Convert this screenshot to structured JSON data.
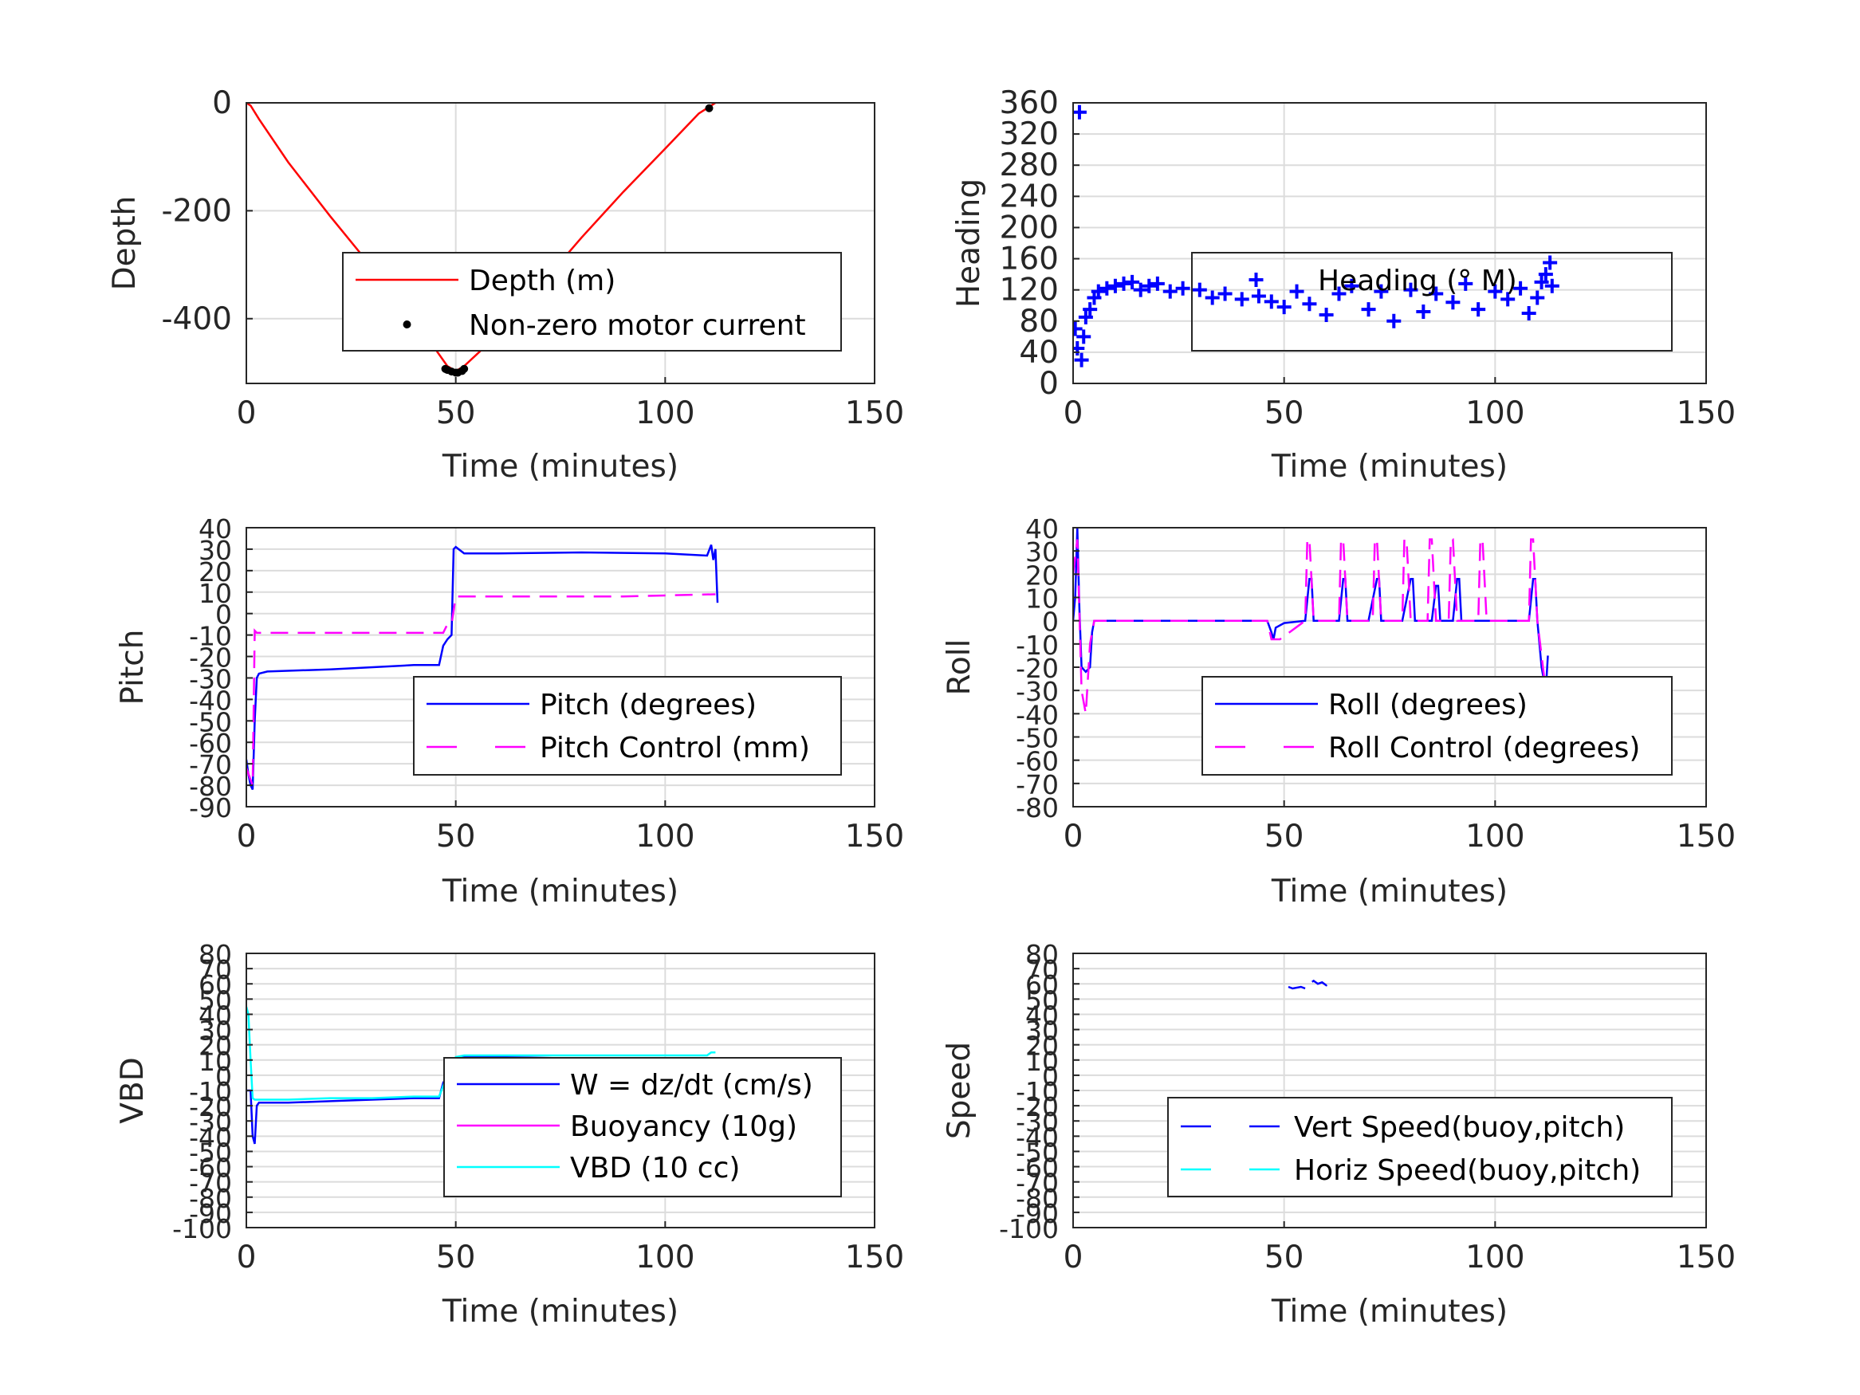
{
  "chart_data": [
    {
      "type": "line",
      "ylabel": "Depth",
      "xlabel": "Time (minutes)",
      "xlim": [
        0,
        150
      ],
      "ylim": [
        -520,
        0
      ],
      "xticks": [
        0,
        50,
        100,
        150
      ],
      "yticks": [
        -400,
        -200,
        0
      ],
      "grid": true,
      "legend_location": "right-middle",
      "series": [
        {
          "name": "Depth (m)",
          "color": "#ff0000",
          "style": "solid",
          "x": [
            0,
            1,
            3,
            10,
            20,
            30,
            40,
            45,
            48,
            50,
            52,
            60,
            70,
            80,
            90,
            100,
            108,
            112
          ],
          "y": [
            0,
            -5,
            -30,
            -110,
            -210,
            -305,
            -405,
            -455,
            -488,
            -497,
            -488,
            -430,
            -340,
            -250,
            -165,
            -85,
            -20,
            0
          ]
        },
        {
          "name": "Non-zero motor current",
          "color": "#000000",
          "style": "marker-dot",
          "x": [
            47.5,
            48,
            49,
            50,
            50.5,
            51.5,
            52,
            110.5
          ],
          "y": [
            -493,
            -495,
            -498,
            -500,
            -500,
            -497,
            -493,
            -10
          ]
        }
      ]
    },
    {
      "type": "scatter",
      "ylabel": "Heading",
      "xlabel": "Time (minutes)",
      "xlim": [
        0,
        150
      ],
      "ylim": [
        0,
        360
      ],
      "xticks": [
        0,
        50,
        100,
        150
      ],
      "yticks": [
        0,
        40,
        80,
        120,
        160,
        200,
        240,
        280,
        320,
        360
      ],
      "grid": true,
      "legend_location": "right-middle",
      "series": [
        {
          "name": "Heading (° M)",
          "color": "#0000ff",
          "style": "plus",
          "x": [
            1.5,
            0.5,
            1,
            2,
            2.5,
            3,
            4,
            5,
            6,
            8,
            10,
            12,
            14,
            16,
            18,
            20,
            23,
            26,
            30,
            33,
            36,
            40,
            44,
            47,
            50,
            53,
            56,
            60,
            63,
            66,
            70,
            73,
            76,
            80,
            83,
            86,
            90,
            93,
            96,
            100,
            103,
            106,
            108,
            110,
            111,
            112,
            113,
            113.5
          ],
          "y": [
            348,
            70,
            45,
            30,
            60,
            85,
            95,
            110,
            118,
            122,
            125,
            128,
            130,
            120,
            125,
            128,
            118,
            122,
            120,
            110,
            115,
            108,
            112,
            105,
            98,
            118,
            102,
            88,
            115,
            125,
            95,
            118,
            80,
            120,
            92,
            115,
            104,
            128,
            95,
            118,
            108,
            122,
            90,
            110,
            130,
            140,
            155,
            125
          ]
        }
      ]
    },
    {
      "type": "line",
      "ylabel": "Pitch",
      "xlabel": "Time (minutes)",
      "xlim": [
        0,
        150
      ],
      "ylim": [
        -90,
        40
      ],
      "xticks": [
        0,
        50,
        100,
        150
      ],
      "yticks": [
        -90,
        -80,
        -70,
        -60,
        -50,
        -40,
        -30,
        -20,
        -10,
        0,
        10,
        20,
        30,
        40
      ],
      "grid": true,
      "legend_location": "right-bottom",
      "series": [
        {
          "name": "Pitch (degrees)",
          "color": "#0000ff",
          "style": "solid",
          "x": [
            0,
            0.5,
            1,
            1.5,
            2,
            2.5,
            3,
            5,
            20,
            40,
            46,
            47,
            48,
            49,
            49.5,
            50,
            52,
            60,
            80,
            100,
            110,
            111,
            111.5,
            112,
            112.5
          ],
          "y": [
            -68,
            -75,
            -80,
            -82,
            -50,
            -30,
            -28,
            -27,
            -26,
            -24,
            -24,
            -15,
            -12,
            -10,
            30,
            31,
            28,
            28,
            28.5,
            28,
            27,
            32,
            25,
            30,
            5
          ]
        },
        {
          "name": "Pitch Control (mm)",
          "color": "#ff00ff",
          "style": "dashed",
          "x": [
            0,
            1.5,
            2,
            2.5,
            3,
            20,
            40,
            47,
            48,
            49,
            50,
            70,
            90,
            112
          ],
          "y": [
            -72,
            -80,
            -8,
            -9,
            -9,
            -9,
            -9,
            -9,
            -5,
            -5,
            8,
            8,
            8,
            9
          ]
        }
      ]
    },
    {
      "type": "line",
      "ylabel": "Roll",
      "xlabel": "Time (minutes)",
      "xlim": [
        0,
        150
      ],
      "ylim": [
        -80,
        40
      ],
      "xticks": [
        0,
        50,
        100,
        150
      ],
      "yticks": [
        -80,
        -70,
        -60,
        -50,
        -40,
        -30,
        -20,
        -10,
        0,
        10,
        20,
        30,
        40
      ],
      "grid": true,
      "legend_location": "right-bottom",
      "series": [
        {
          "name": "Roll (degrees)",
          "color": "#0000ff",
          "style": "solid",
          "x": [
            0,
            0.5,
            1,
            1.5,
            2,
            3,
            4,
            4.5,
            5,
            10,
            20,
            30,
            40,
            46,
            47,
            47.5,
            48,
            50,
            55,
            56,
            56.5,
            57,
            60,
            63,
            64,
            64.5,
            65,
            70,
            72,
            72.5,
            73,
            78,
            80,
            80.5,
            81,
            85,
            86,
            86.5,
            87,
            90,
            91,
            91.5,
            92,
            100,
            108,
            109,
            109.5,
            110,
            111,
            112,
            112.5
          ],
          "y": [
            0,
            10,
            40,
            5,
            -20,
            -22,
            -20,
            -5,
            0,
            0,
            0,
            0,
            0,
            0,
            -5,
            -8,
            -3,
            -1,
            0,
            18,
            18,
            0,
            0,
            0,
            18,
            18,
            0,
            0,
            18,
            18,
            0,
            0,
            18,
            18,
            0,
            0,
            15,
            15,
            0,
            0,
            18,
            18,
            0,
            0,
            0,
            18,
            18,
            0,
            -20,
            -30,
            -15
          ]
        },
        {
          "name": "Roll Control (degrees)",
          "color": "#ff00ff",
          "style": "dashed",
          "x": [
            0,
            1,
            2,
            3,
            4,
            5,
            10,
            30,
            46,
            47,
            49,
            55,
            55.5,
            56,
            57,
            63,
            63.5,
            64,
            65,
            71,
            71.5,
            72,
            73,
            78,
            78.5,
            79,
            80,
            84,
            84.5,
            85,
            86,
            89,
            89.5,
            90,
            91,
            96,
            96.5,
            97,
            98,
            108,
            108.5,
            109,
            110,
            112
          ],
          "y": [
            20,
            35,
            -30,
            -40,
            -10,
            0,
            0,
            0,
            0,
            -8,
            -8,
            0,
            35,
            35,
            0,
            0,
            35,
            35,
            0,
            0,
            35,
            35,
            0,
            0,
            35,
            35,
            0,
            0,
            35,
            35,
            0,
            0,
            35,
            35,
            0,
            0,
            35,
            35,
            0,
            0,
            35,
            35,
            0,
            -30
          ]
        }
      ]
    },
    {
      "type": "line",
      "ylabel": "VBD",
      "xlabel": "Time (minutes)",
      "xlim": [
        0,
        150
      ],
      "ylim": [
        -100,
        80
      ],
      "xticks": [
        0,
        50,
        100,
        150
      ],
      "yticks": [
        -100,
        -90,
        -80,
        -70,
        -60,
        -50,
        -40,
        -30,
        -20,
        -10,
        0,
        10,
        20,
        30,
        40,
        50,
        60,
        70,
        80
      ],
      "grid": true,
      "legend_location": "right-middle",
      "series": [
        {
          "name": "W = dz/dt (cm/s)",
          "color": "#0000ff",
          "style": "solid",
          "x": [
            0,
            1,
            1.5,
            2,
            2.5,
            3,
            10,
            20,
            30,
            40,
            46,
            47,
            48,
            50,
            52,
            60,
            80,
            100,
            110,
            111,
            112
          ],
          "y": [
            -10,
            -10,
            -40,
            -45,
            -20,
            -18,
            -18,
            -17,
            -16,
            -15,
            -15,
            -5,
            0,
            10,
            12,
            12,
            11,
            10,
            10,
            5,
            8
          ]
        },
        {
          "name": "Buoyancy (10g)",
          "color": "#ff00ff",
          "style": "solid",
          "x": [],
          "y": []
        },
        {
          "name": "VBD (10 cc)",
          "color": "#00ffff",
          "style": "solid",
          "x": [
            0,
            0.5,
            1,
            1.5,
            2,
            3,
            10,
            20,
            30,
            40,
            46,
            48,
            50,
            52,
            60,
            80,
            100,
            110,
            111,
            112
          ],
          "y": [
            45,
            40,
            10,
            -15,
            -16,
            -16,
            -16,
            -15,
            -15,
            -14,
            -14,
            0,
            12,
            13,
            13,
            13,
            13,
            13,
            15,
            15
          ]
        }
      ]
    },
    {
      "type": "line",
      "ylabel": "Speed",
      "xlabel": "",
      "xlim": [
        0,
        150
      ],
      "ylim": [
        -100,
        80
      ],
      "xticks": [
        0,
        50,
        100,
        150
      ],
      "yticks": [
        -100,
        -90,
        -80,
        -70,
        -60,
        -50,
        -40,
        -30,
        -20,
        -10,
        0,
        10,
        20,
        30,
        40,
        50,
        60,
        70,
        80
      ],
      "grid": true,
      "legend_location": "right-bottom",
      "series": [
        {
          "name": "Vert Speed(buoy,pitch)",
          "color": "#0000ff",
          "style": "dashed",
          "x": [
            51,
            52,
            54,
            55,
            56,
            57,
            58,
            59,
            60,
            61,
            62
          ],
          "y": [
            58,
            57,
            58,
            57,
            60,
            62,
            60,
            61,
            59,
            60,
            59
          ]
        },
        {
          "name": "Horiz Speed(buoy,pitch)",
          "color": "#00ffff",
          "style": "dashed",
          "x": [],
          "y": []
        }
      ]
    }
  ]
}
